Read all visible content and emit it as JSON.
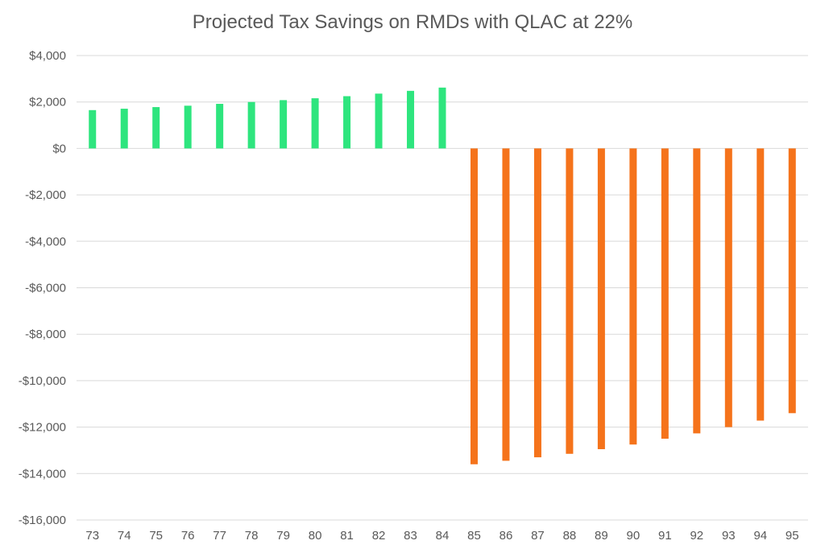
{
  "chart_data": {
    "type": "bar",
    "title": "Projected Tax Savings on RMDs with QLAC at 22%",
    "xlabel": "",
    "ylabel": "",
    "categories": [
      "73",
      "74",
      "75",
      "76",
      "77",
      "78",
      "79",
      "80",
      "81",
      "82",
      "83",
      "84",
      "85",
      "86",
      "87",
      "88",
      "89",
      "90",
      "91",
      "92",
      "93",
      "94",
      "95"
    ],
    "values": [
      1650,
      1710,
      1780,
      1840,
      1920,
      2000,
      2080,
      2160,
      2250,
      2360,
      2480,
      2620,
      -13600,
      -13450,
      -13300,
      -13150,
      -12950,
      -12750,
      -12500,
      -12270,
      -12000,
      -11720,
      -11400
    ],
    "ylim": [
      -16000,
      4000
    ],
    "yticks": [
      4000,
      2000,
      0,
      -2000,
      -4000,
      -6000,
      -8000,
      -10000,
      -12000,
      -14000,
      -16000
    ],
    "ytick_labels": [
      "$4,000",
      "$2,000",
      "$0",
      "-$2,000",
      "-$4,000",
      "-$6,000",
      "-$8,000",
      "-$10,000",
      "-$12,000",
      "-$14,000",
      "-$16,000"
    ],
    "grid": true,
    "legend": "none",
    "colors": {
      "positive": "#2ee57e",
      "negative": "#f5731b",
      "grid": "#d9d9d9",
      "text": "#595959"
    }
  }
}
